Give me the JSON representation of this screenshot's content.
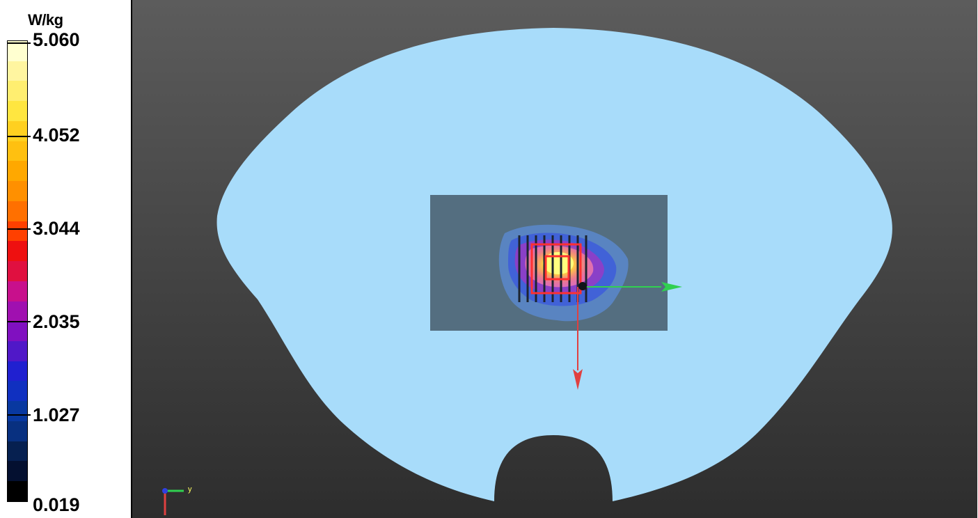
{
  "legend": {
    "unit": "W/kg",
    "ticks": [
      "5.060",
      "4.052",
      "3.044",
      "2.035",
      "1.027",
      "0.019"
    ],
    "colors": [
      "#ffffd0",
      "#fff5a0",
      "#ffee70",
      "#ffe640",
      "#ffd020",
      "#ffc010",
      "#ffa800",
      "#ff9000",
      "#ff7000",
      "#ff4000",
      "#ee1010",
      "#e01040",
      "#c8108c",
      "#a010b0",
      "#8010c0",
      "#5018c8",
      "#2020d0",
      "#1030c0",
      "#0838a0",
      "#083080",
      "#062050",
      "#041030",
      "#000000"
    ],
    "axis_indicator_label": "y"
  },
  "viewport": {
    "background_top": "#5c5c5c",
    "background_bottom": "#2d2d2d",
    "phantom_color": "#a8dcfa",
    "scan_area_color": "#546e80",
    "axis_x_color": "#e04040",
    "axis_y_color": "#30d050"
  }
}
